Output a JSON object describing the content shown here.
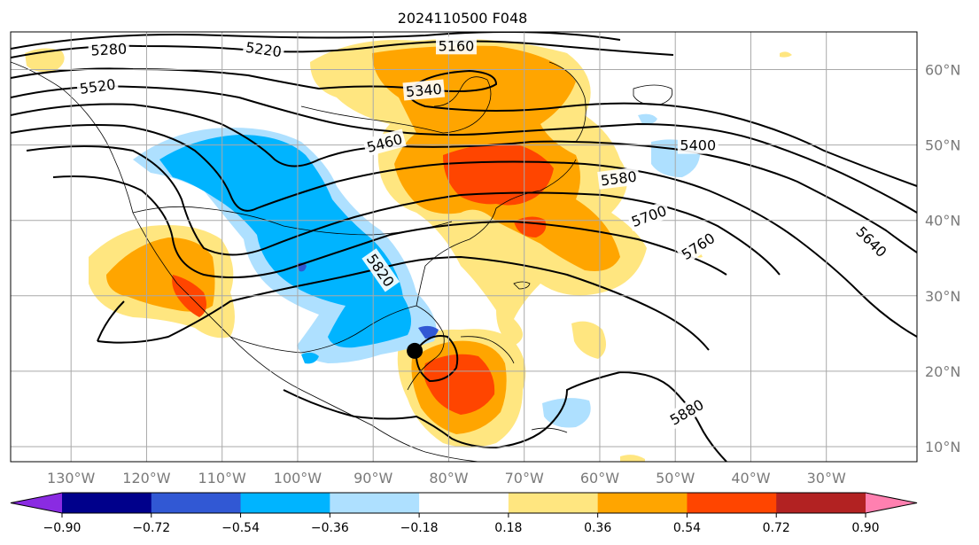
{
  "title": "2024110500 F048",
  "map": {
    "lon_range": [
      -138,
      -18
    ],
    "lat_range": [
      8,
      65
    ],
    "lon_ticks": [
      {
        "lon": -130,
        "label": "130°W"
      },
      {
        "lon": -120,
        "label": "120°W"
      },
      {
        "lon": -110,
        "label": "110°W"
      },
      {
        "lon": -100,
        "label": "100°W"
      },
      {
        "lon": -90,
        "label": "90°W"
      },
      {
        "lon": -80,
        "label": "80°W"
      },
      {
        "lon": -70,
        "label": "70°W"
      },
      {
        "lon": -60,
        "label": "60°W"
      },
      {
        "lon": -50,
        "label": "50°W"
      },
      {
        "lon": -40,
        "label": "40°W"
      },
      {
        "lon": -30,
        "label": "30°W"
      }
    ],
    "lat_ticks": [
      {
        "lat": 60,
        "label": "60°N"
      },
      {
        "lat": 50,
        "label": "50°N"
      },
      {
        "lat": 40,
        "label": "40°N"
      },
      {
        "lat": 30,
        "label": "30°N"
      },
      {
        "lat": 20,
        "label": "20°N"
      },
      {
        "lat": 10,
        "label": "10°N"
      }
    ],
    "marker": {
      "lon": -84.5,
      "lat": 22.7,
      "color": "#000000"
    }
  },
  "contour_labels": [
    {
      "text": "5280",
      "lon": -125,
      "lat": 62.7,
      "angle": -3
    },
    {
      "text": "5220",
      "lon": -104.5,
      "lat": 62.7,
      "angle": 8
    },
    {
      "text": "5160",
      "lon": -79,
      "lat": 63.2,
      "angle": 0
    },
    {
      "text": "5520",
      "lon": -126.5,
      "lat": 57.8,
      "angle": -8
    },
    {
      "text": "5340",
      "lon": -83.3,
      "lat": 57.3,
      "angle": -5
    },
    {
      "text": "5460",
      "lon": -88.5,
      "lat": 50.3,
      "angle": -15
    },
    {
      "text": "5400",
      "lon": -47,
      "lat": 50,
      "angle": 0
    },
    {
      "text": "5580",
      "lon": -57.5,
      "lat": 45.6,
      "angle": -7
    },
    {
      "text": "5700",
      "lon": -53.5,
      "lat": 40.6,
      "angle": -20
    },
    {
      "text": "5760",
      "lon": -47,
      "lat": 36.6,
      "angle": -33
    },
    {
      "text": "5640",
      "lon": -24,
      "lat": 37.2,
      "angle": 45
    },
    {
      "text": "5820",
      "lon": -89,
      "lat": 33.4,
      "angle": 55
    },
    {
      "text": "5880",
      "lon": -48.5,
      "lat": 14.6,
      "angle": -30
    }
  ],
  "colorbar": {
    "levels": [
      "−0.90",
      "−0.72",
      "−0.54",
      "−0.36",
      "−0.18",
      "0.18",
      "0.36",
      "0.54",
      "0.72",
      "0.90"
    ],
    "colors": [
      "#8a2be2",
      "#00008b",
      "#3158d4",
      "#00b4ff",
      "#aee0ff",
      "#ffffff",
      "#ffe680",
      "#ffa500",
      "#ff4500",
      "#b22222",
      "#ff80b0"
    ]
  }
}
